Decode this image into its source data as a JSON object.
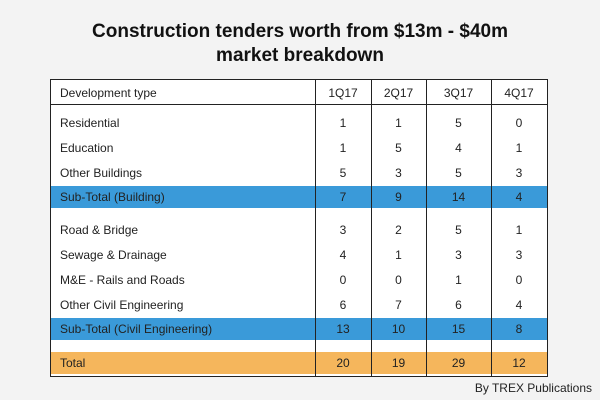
{
  "title_line1": "Construction tenders worth from $13m - $40m",
  "title_line2": "market breakdown",
  "credit": "By TREX Publications",
  "colors": {
    "subtotal_band": "#3a9ad9",
    "total_band": "#f5b65c"
  },
  "chart_data": {
    "type": "table",
    "columns": [
      "Development type",
      "1Q17",
      "2Q17",
      "3Q17",
      "4Q17"
    ],
    "rows": [
      {
        "label": "Residential",
        "values": [
          1,
          1,
          5,
          0
        ],
        "style": "normal"
      },
      {
        "label": "Education",
        "values": [
          1,
          5,
          4,
          1
        ],
        "style": "normal"
      },
      {
        "label": "Other Buildings",
        "values": [
          5,
          3,
          5,
          3
        ],
        "style": "normal"
      },
      {
        "label": "Sub-Total (Building)",
        "values": [
          7,
          9,
          14,
          4
        ],
        "style": "subtotal"
      },
      {
        "label": "Road & Bridge",
        "values": [
          3,
          2,
          5,
          1
        ],
        "style": "normal"
      },
      {
        "label": "Sewage & Drainage",
        "values": [
          4,
          1,
          3,
          3
        ],
        "style": "normal"
      },
      {
        "label": "M&E - Rails and Roads",
        "values": [
          0,
          0,
          1,
          0
        ],
        "style": "normal"
      },
      {
        "label": "Other Civil Engineering",
        "values": [
          6,
          7,
          6,
          4
        ],
        "style": "normal"
      },
      {
        "label": "Sub-Total (Civil Engineering)",
        "values": [
          13,
          10,
          15,
          8
        ],
        "style": "subtotal"
      },
      {
        "label": "Total",
        "values": [
          20,
          19,
          29,
          12
        ],
        "style": "total"
      }
    ]
  }
}
